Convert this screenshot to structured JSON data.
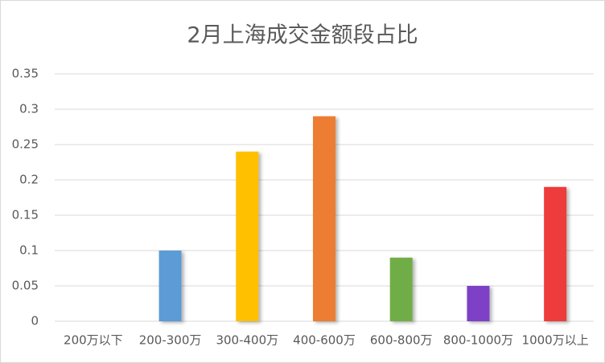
{
  "chart_data": {
    "type": "bar",
    "title": "2月上海成交金额段占比",
    "categories": [
      "200万以下",
      "200-300万",
      "300-400万",
      "400-600万",
      "600-800万",
      "800-1000万",
      "1000万以上"
    ],
    "values": [
      0,
      0.1,
      0.24,
      0.29,
      0.09,
      0.05,
      0.19
    ],
    "colors": [
      "#4472c4",
      "#5b9bd5",
      "#ffc000",
      "#ed7d31",
      "#70ad47",
      "#7e3fc6",
      "#ee3a3a"
    ],
    "ylim": [
      0,
      0.35
    ],
    "yticks": [
      0,
      0.05,
      0.1,
      0.15,
      0.2,
      0.25,
      0.3,
      0.35
    ],
    "grid": true
  }
}
